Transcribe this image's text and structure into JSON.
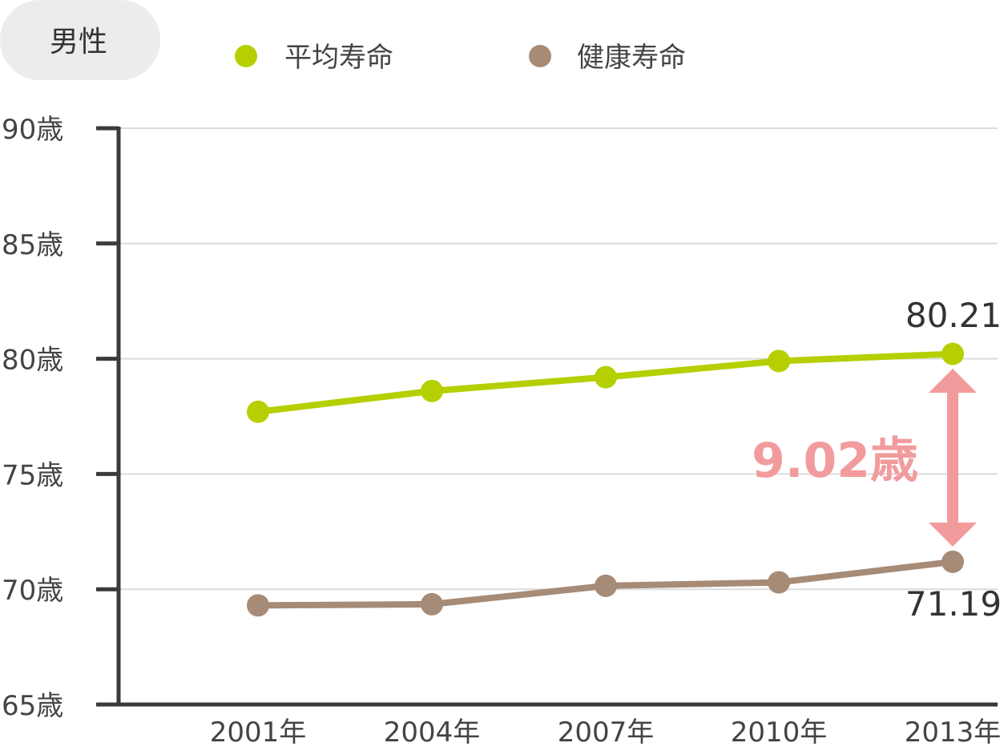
{
  "chart_data": {
    "type": "line",
    "panel_label": "男性",
    "categories": [
      "2001年",
      "2004年",
      "2007年",
      "2010年",
      "2013年"
    ],
    "y_tick_labels": [
      "90歳",
      "85歳",
      "80歳",
      "75歳",
      "70歳",
      "65歳"
    ],
    "y_ticks": [
      90,
      85,
      80,
      75,
      70,
      65
    ],
    "ylim": [
      65,
      90
    ],
    "grid": true,
    "legend_position": "top",
    "series": [
      {
        "name": "平均寿命",
        "color": "#b5cf00",
        "values": [
          77.7,
          78.6,
          79.2,
          79.9,
          80.21
        ]
      },
      {
        "name": "健康寿命",
        "color": "#a68b77",
        "values": [
          69.3,
          69.35,
          70.15,
          70.3,
          71.19
        ]
      }
    ],
    "data_labels": {
      "top": "80.21",
      "bottom": "71.19"
    },
    "annotation": {
      "text": "9.02歳",
      "color": "#f29b9d"
    }
  }
}
